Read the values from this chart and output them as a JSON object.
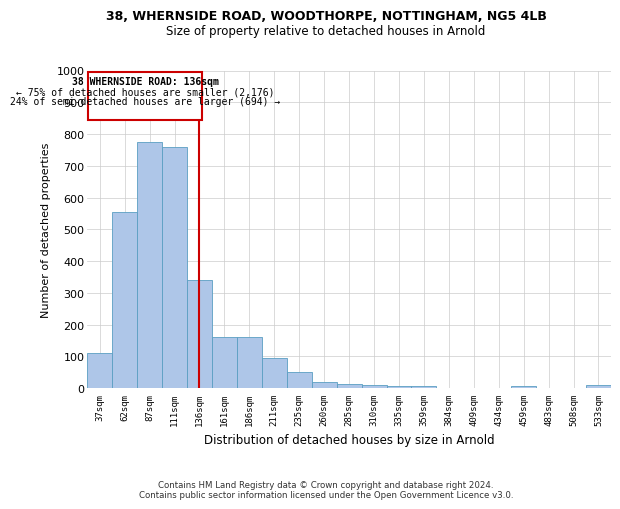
{
  "title1": "38, WHERNSIDE ROAD, WOODTHORPE, NOTTINGHAM, NG5 4LB",
  "title2": "Size of property relative to detached houses in Arnold",
  "xlabel": "Distribution of detached houses by size in Arnold",
  "ylabel": "Number of detached properties",
  "footer1": "Contains HM Land Registry data © Crown copyright and database right 2024.",
  "footer2": "Contains public sector information licensed under the Open Government Licence v3.0.",
  "annotation_line1": "38 WHERNSIDE ROAD: 136sqm",
  "annotation_line2": "← 75% of detached houses are smaller (2,176)",
  "annotation_line3": "24% of semi-detached houses are larger (694) →",
  "bar_labels": [
    "37sqm",
    "62sqm",
    "87sqm",
    "111sqm",
    "136sqm",
    "161sqm",
    "186sqm",
    "211sqm",
    "235sqm",
    "260sqm",
    "285sqm",
    "310sqm",
    "335sqm",
    "359sqm",
    "384sqm",
    "409sqm",
    "434sqm",
    "459sqm",
    "483sqm",
    "508sqm",
    "533sqm"
  ],
  "bar_values": [
    110,
    555,
    775,
    760,
    340,
    160,
    160,
    95,
    50,
    18,
    12,
    10,
    7,
    8,
    0,
    0,
    0,
    5,
    0,
    0,
    10
  ],
  "bar_color": "#aec6e8",
  "bar_edge_color": "#5a9fc2",
  "vline_color": "#cc0000",
  "vline_index": 4,
  "annotation_box_color": "#cc0000",
  "background_color": "#ffffff",
  "grid_color": "#cccccc",
  "ylim": [
    0,
    1000
  ],
  "yticks": [
    0,
    100,
    200,
    300,
    400,
    500,
    600,
    700,
    800,
    900,
    1000
  ]
}
